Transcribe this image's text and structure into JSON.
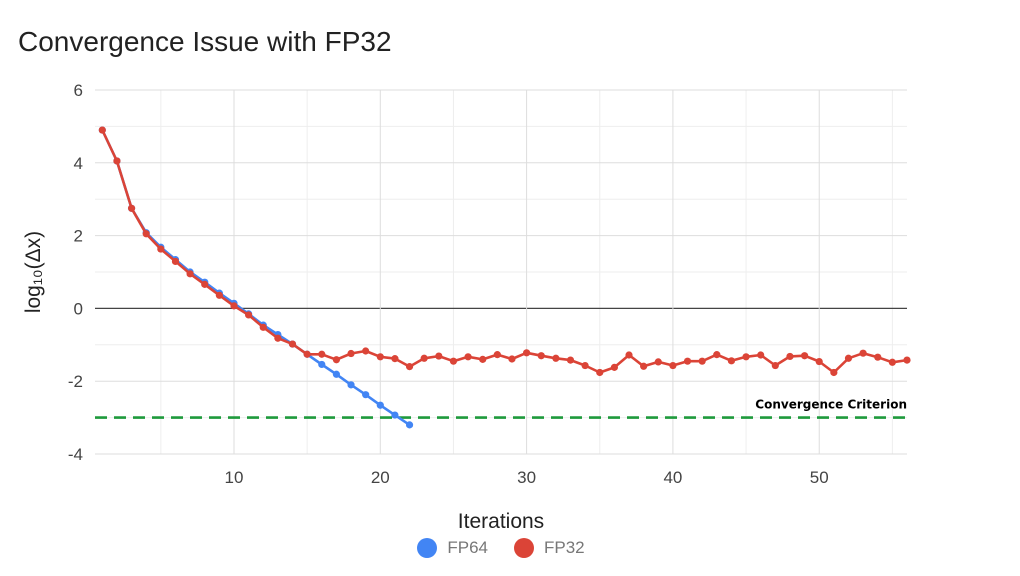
{
  "chart_data": {
    "type": "line",
    "title": "Convergence Issue with FP32",
    "xlabel": "Iterations",
    "ylabel": "log₁₀(Δx)",
    "xlim": [
      0.5,
      56
    ],
    "ylim": [
      -4,
      6
    ],
    "x_ticks": [
      10,
      20,
      30,
      40,
      50
    ],
    "y_ticks": [
      -4,
      -2,
      0,
      2,
      4,
      6
    ],
    "x_tick_labels": [
      "10",
      "20",
      "30",
      "40",
      "50"
    ],
    "y_tick_labels": [
      "-4",
      "-2",
      "0",
      "2",
      "4",
      "6"
    ],
    "grid": true,
    "legend_position": "bottom",
    "series": [
      {
        "name": "FP64",
        "color": "#4285f4",
        "x": [
          1,
          2,
          3,
          4,
          5,
          6,
          7,
          8,
          9,
          10,
          11,
          12,
          13,
          14,
          15,
          16,
          17,
          18,
          19,
          20,
          21,
          22
        ],
        "y": [
          4.9,
          4.05,
          2.75,
          2.08,
          1.68,
          1.34,
          1.0,
          0.72,
          0.42,
          0.14,
          -0.15,
          -0.46,
          -0.72,
          -0.98,
          -1.26,
          -1.54,
          -1.81,
          -2.1,
          -2.37,
          -2.66,
          -2.93,
          -3.2
        ]
      },
      {
        "name": "FP32",
        "color": "#db4437",
        "x": [
          1,
          2,
          3,
          4,
          5,
          6,
          7,
          8,
          9,
          10,
          11,
          12,
          13,
          14,
          15,
          16,
          17,
          18,
          19,
          20,
          21,
          22,
          23,
          24,
          25,
          26,
          27,
          28,
          29,
          30,
          31,
          32,
          33,
          34,
          35,
          36,
          37,
          38,
          39,
          40,
          41,
          42,
          43,
          44,
          45,
          46,
          47,
          48,
          49,
          50,
          51,
          52,
          53,
          54,
          55,
          56
        ],
        "y": [
          4.9,
          4.05,
          2.75,
          2.05,
          1.63,
          1.29,
          0.95,
          0.66,
          0.36,
          0.07,
          -0.18,
          -0.52,
          -0.82,
          -0.98,
          -1.26,
          -1.26,
          -1.41,
          -1.24,
          -1.17,
          -1.33,
          -1.38,
          -1.6,
          -1.37,
          -1.31,
          -1.45,
          -1.33,
          -1.4,
          -1.27,
          -1.39,
          -1.22,
          -1.3,
          -1.37,
          -1.42,
          -1.57,
          -1.76,
          -1.62,
          -1.28,
          -1.59,
          -1.47,
          -1.57,
          -1.45,
          -1.45,
          -1.27,
          -1.44,
          -1.33,
          -1.28,
          -1.57,
          -1.32,
          -1.3,
          -1.46,
          -1.76,
          -1.37,
          -1.23,
          -1.34,
          -1.48,
          -1.42
        ]
      }
    ],
    "annotations": [
      {
        "label": "Convergence Criterion",
        "y": -3,
        "color": "#1e9a3c",
        "style": "dashed"
      }
    ]
  }
}
